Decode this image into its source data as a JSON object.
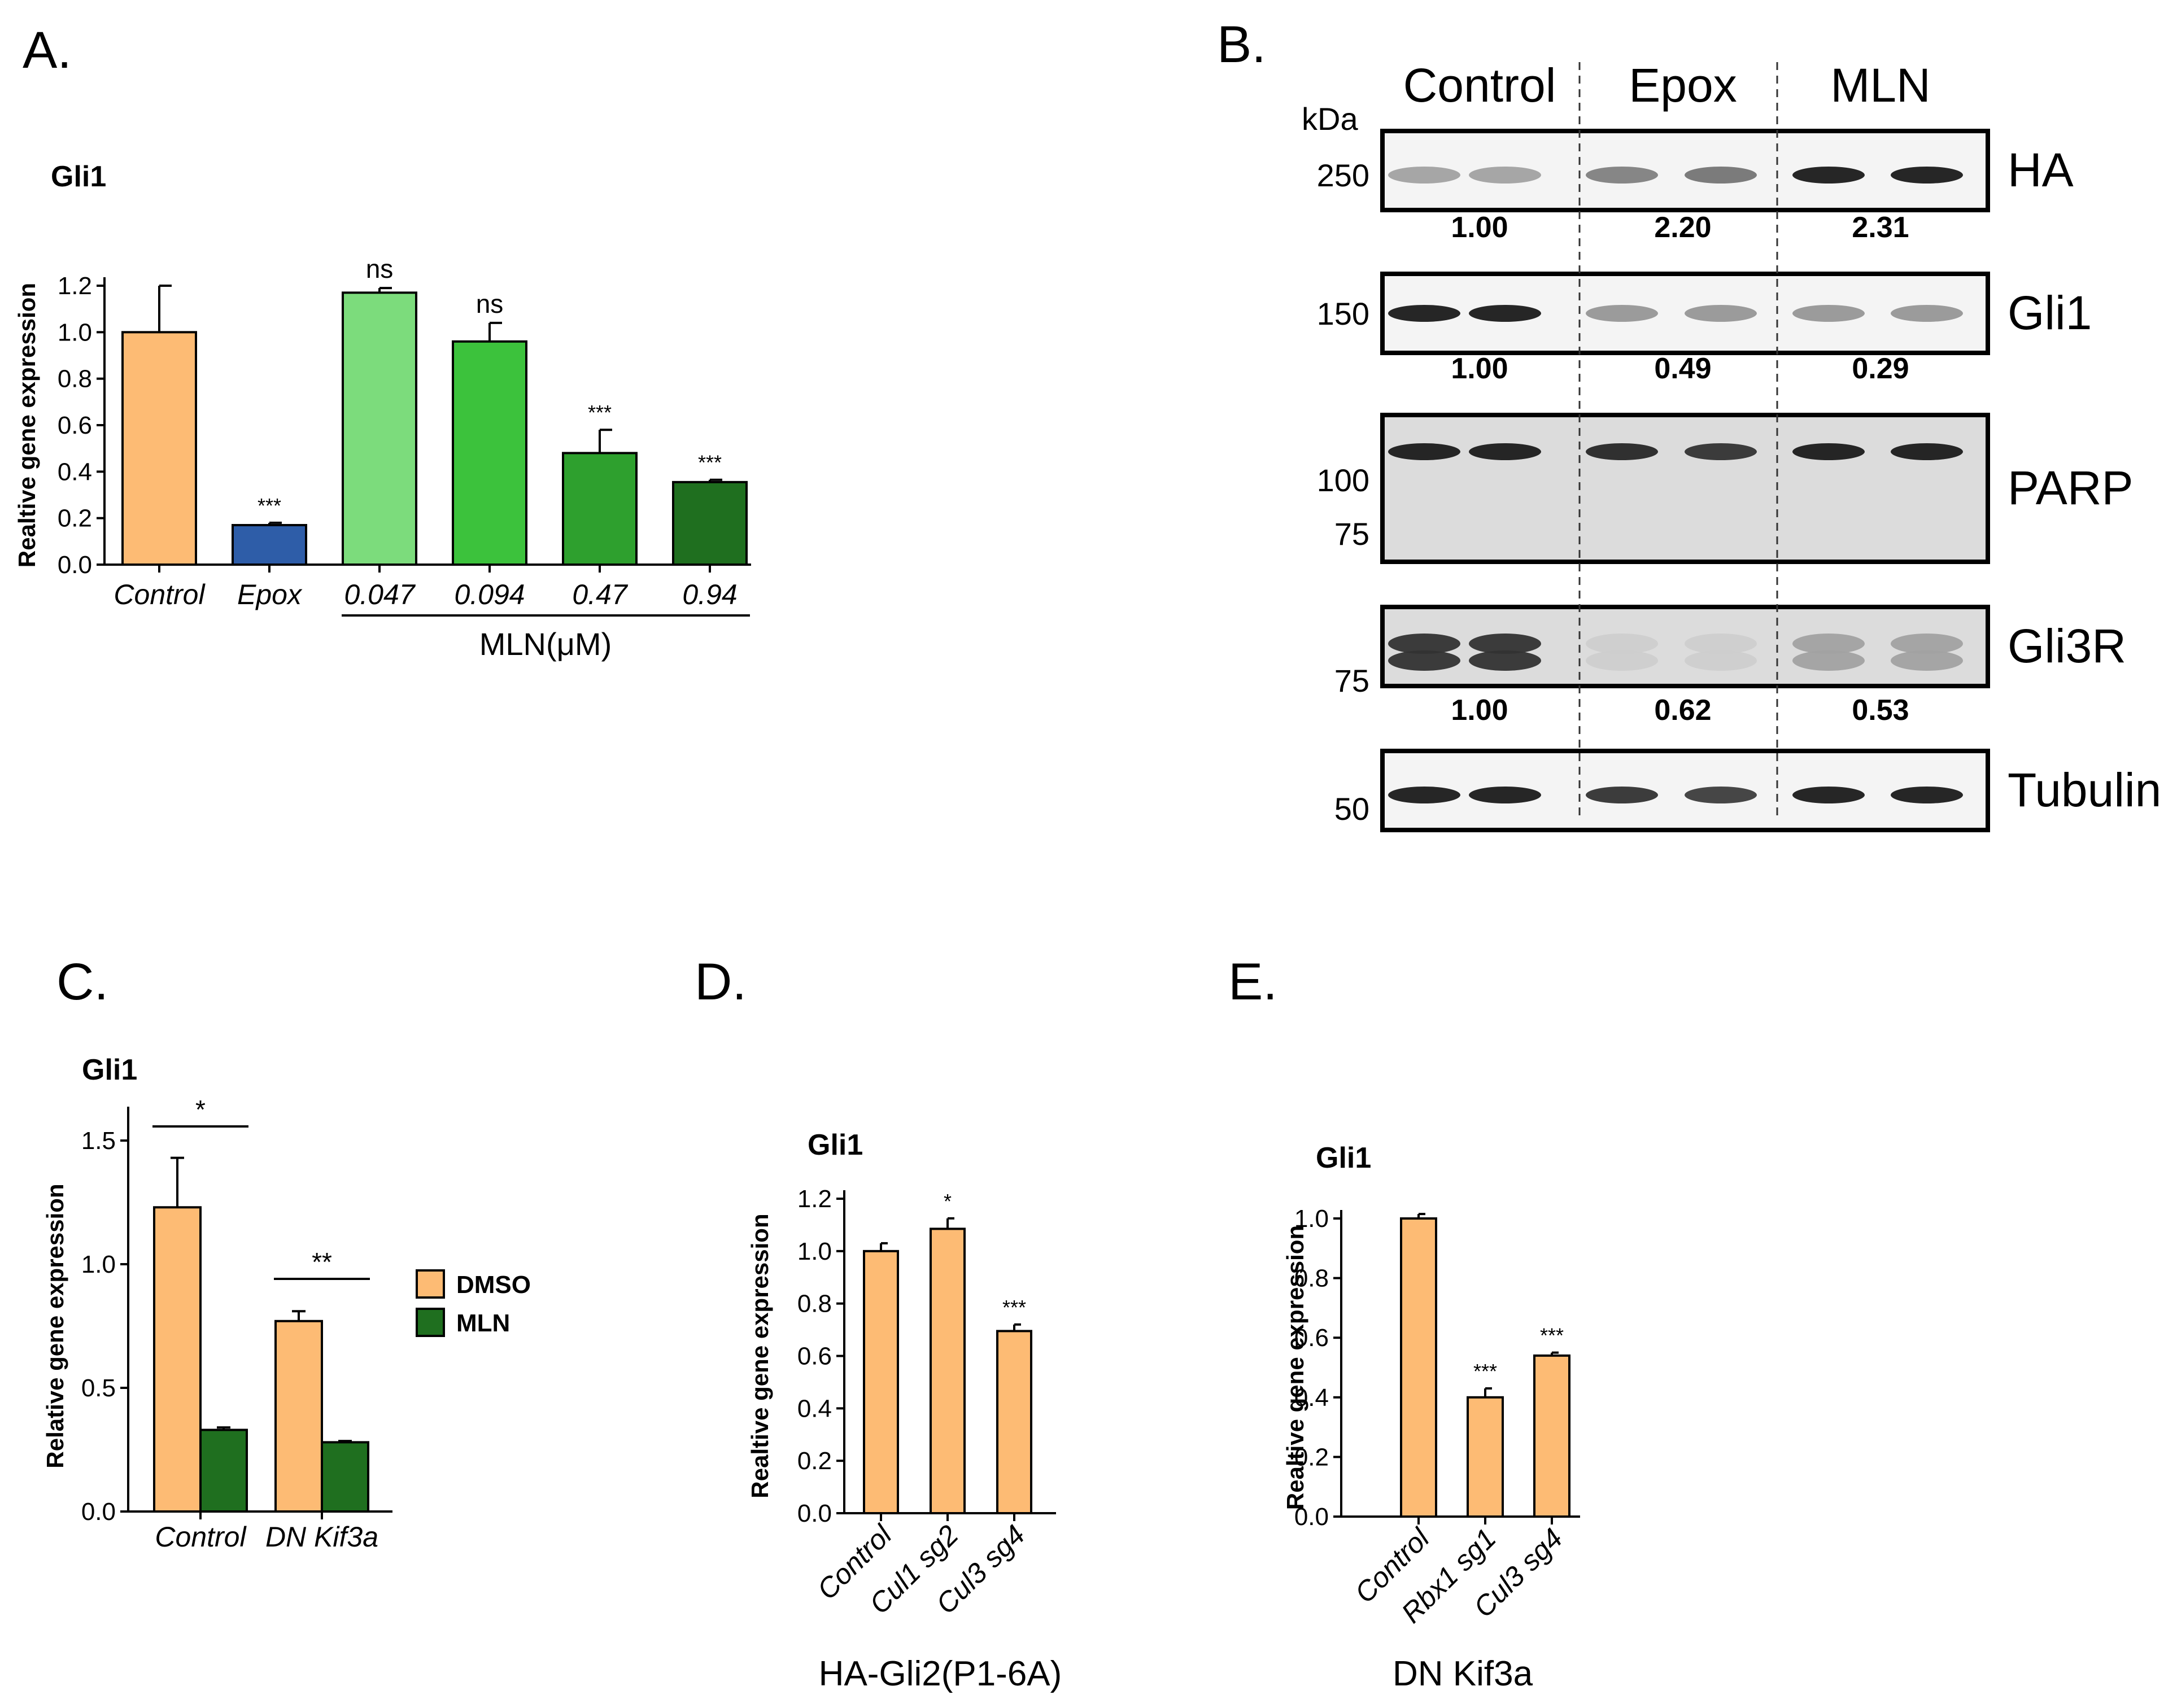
{
  "figure": {
    "panels": {
      "A": "A.",
      "B": "B.",
      "C": "C.",
      "D": "D.",
      "E": "E."
    }
  },
  "chart_data": [
    {
      "panel": "A",
      "type": "bar",
      "title": "Gli1",
      "ylabel": "Realtive gene expression",
      "ylim": [
        0,
        1.2
      ],
      "yticks": [
        "0.0",
        "0.2",
        "0.4",
        "0.6",
        "0.8",
        "1.0",
        "1.2"
      ],
      "categories": [
        "Control",
        "Epox",
        "0.047",
        "0.094",
        "0.47",
        "0.94"
      ],
      "values": [
        1.0,
        0.17,
        1.17,
        0.96,
        0.48,
        0.355
      ],
      "errors": [
        0.2,
        0.01,
        0.02,
        0.08,
        0.1,
        0.01
      ],
      "significance": [
        "",
        "***",
        "ns",
        "ns",
        "***",
        "***"
      ],
      "colors": [
        "#FDBB74",
        "#2E5DA8",
        "#7CDC7C",
        "#3CC23C",
        "#2EA02E",
        "#1F6F1F"
      ],
      "group_label": "MLN(μM)"
    },
    {
      "panel": "C",
      "type": "bar",
      "title": "Gli1",
      "ylabel": "Relative gene expression",
      "ylim": [
        0,
        1.5
      ],
      "yticks": [
        "0.0",
        "0.5",
        "1.0",
        "1.5"
      ],
      "categories": [
        "Control",
        "DN Kif3a"
      ],
      "series": [
        {
          "name": "DMSO",
          "values": [
            1.23,
            0.77
          ],
          "errors": [
            0.2,
            0.04
          ],
          "color": "#FDBB74"
        },
        {
          "name": "MLN",
          "values": [
            0.33,
            0.28
          ],
          "errors": [
            0.01,
            0.005
          ],
          "color": "#1F6F1F"
        }
      ],
      "significance": [
        "*",
        "**"
      ]
    },
    {
      "panel": "D",
      "type": "bar",
      "title": "Gli1",
      "ylabel": "Realtive gene expression",
      "ylim": [
        0,
        1.2
      ],
      "yticks": [
        "0.0",
        "0.2",
        "0.4",
        "0.6",
        "0.8",
        "1.0",
        "1.2"
      ],
      "categories": [
        "Control",
        "Cul1 sg2",
        "Cul3 sg4"
      ],
      "values": [
        1.0,
        1.085,
        0.695
      ],
      "errors": [
        0.03,
        0.04,
        0.025
      ],
      "significance": [
        "",
        "*",
        "***"
      ],
      "colors": [
        "#FDBB74",
        "#FDBB74",
        "#FDBB74"
      ],
      "subtitle": "HA-Gli2(P1-6A)"
    },
    {
      "panel": "E",
      "type": "bar",
      "title": "Gli1",
      "ylabel": "Realtive gene expression",
      "ylim": [
        0,
        1.0
      ],
      "yticks": [
        "0.0",
        "0.2",
        "0.4",
        "0.6",
        "0.8",
        "1.0"
      ],
      "categories": [
        "Control",
        "Rbx1 sg1",
        "Cul3 sg4"
      ],
      "values": [
        1.0,
        0.4,
        0.54
      ],
      "errors": [
        0.015,
        0.03,
        0.01
      ],
      "significance": [
        "",
        "***",
        "***"
      ],
      "colors": [
        "#FDBB74",
        "#FDBB74",
        "#FDBB74"
      ],
      "subtitle": "DN Kif3a"
    }
  ],
  "blot": {
    "groups": [
      "Control",
      "Epox",
      "MLN"
    ],
    "kda_label": "kDa",
    "rows": [
      {
        "label": "HA",
        "markers": [
          "250"
        ],
        "quant": [
          "1.00",
          "2.20",
          "2.31"
        ],
        "intensity": [
          0.35,
          0.35,
          0.5,
          0.55,
          0.95,
          0.95
        ]
      },
      {
        "label": "Gli1",
        "markers": [
          "150"
        ],
        "quant": [
          "1.00",
          "0.49",
          "0.29"
        ],
        "intensity": [
          0.95,
          0.95,
          0.4,
          0.4,
          0.4,
          0.4
        ]
      },
      {
        "label": "PARP",
        "markers": [
          "100",
          "75"
        ],
        "quant": [],
        "intensity": [
          0.95,
          0.95,
          0.9,
          0.85,
          0.95,
          0.95
        ]
      },
      {
        "label": "Gli3R",
        "markers": [
          "75"
        ],
        "quant": [
          "1.00",
          "0.62",
          "0.53"
        ],
        "intensity": [
          0.85,
          0.85,
          0.15,
          0.15,
          0.35,
          0.35
        ]
      },
      {
        "label": "Tubulin",
        "markers": [
          "50"
        ],
        "quant": [],
        "intensity": [
          0.95,
          0.95,
          0.85,
          0.8,
          0.95,
          0.95
        ]
      }
    ]
  }
}
